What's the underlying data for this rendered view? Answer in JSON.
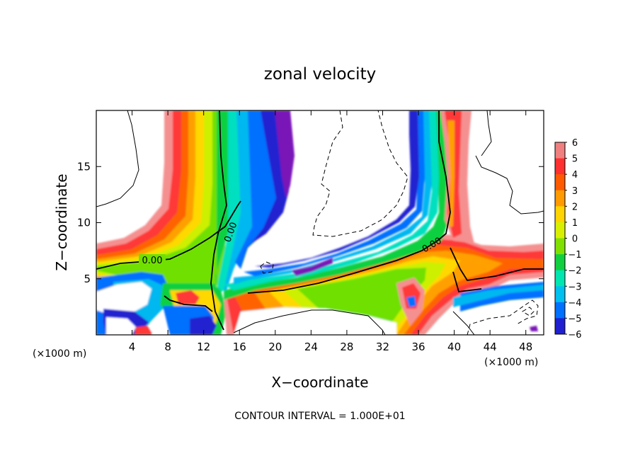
{
  "chart_data": {
    "type": "heatmap",
    "title": "zonal velocity",
    "xlabel": "X−coordinate",
    "ylabel": "Z−coordinate",
    "x_unit_left": "(×1000 m)",
    "x_unit_right": "(×1000 m)",
    "xlim": [
      0,
      50
    ],
    "ylim": [
      0,
      20
    ],
    "x_ticks": [
      {
        "value": 4,
        "label": "4"
      },
      {
        "value": 8,
        "label": "8"
      },
      {
        "value": 12,
        "label": "12"
      },
      {
        "value": 16,
        "label": "16"
      },
      {
        "value": 20,
        "label": "20"
      },
      {
        "value": 24,
        "label": "24"
      },
      {
        "value": 28,
        "label": "28"
      },
      {
        "value": 32,
        "label": "32"
      },
      {
        "value": 36,
        "label": "36"
      },
      {
        "value": 40,
        "label": "40"
      },
      {
        "value": 44,
        "label": "44"
      },
      {
        "value": 48,
        "label": "48"
      }
    ],
    "y_ticks": [
      {
        "value": 5,
        "label": "5"
      },
      {
        "value": 10,
        "label": "10"
      },
      {
        "value": 15,
        "label": "15"
      }
    ],
    "contour_label": "0.00",
    "contour_note": "CONTOUR INTERVAL = 1.000E+01",
    "colorbar": {
      "levels": [
        "6",
        "5",
        "4",
        "3",
        "2",
        "1",
        "0",
        "−1",
        "−2",
        "−3",
        "−4",
        "−5",
        "−6"
      ],
      "colors": [
        "#f08080",
        "#ff3030",
        "#ff5a00",
        "#ff9a00",
        "#ffd400",
        "#d8f000",
        "#80e000",
        "#10d040",
        "#00e6b0",
        "#00c0f0",
        "#0070ff",
        "#2020d0",
        "#7a18b8"
      ]
    },
    "palette": {
      "pos6": "#f59090",
      "pos5": "#ff3838",
      "pos4": "#ff6400",
      "pos3": "#ffa000",
      "pos2": "#ffd800",
      "pos1": "#ccf000",
      "zero": "#70e000",
      "neg1": "#10d040",
      "neg2": "#00e0c0",
      "neg3": "#00b8f0",
      "neg4": "#0070ff",
      "neg5": "#2020d0",
      "neg6": "#7a18b8"
    }
  }
}
